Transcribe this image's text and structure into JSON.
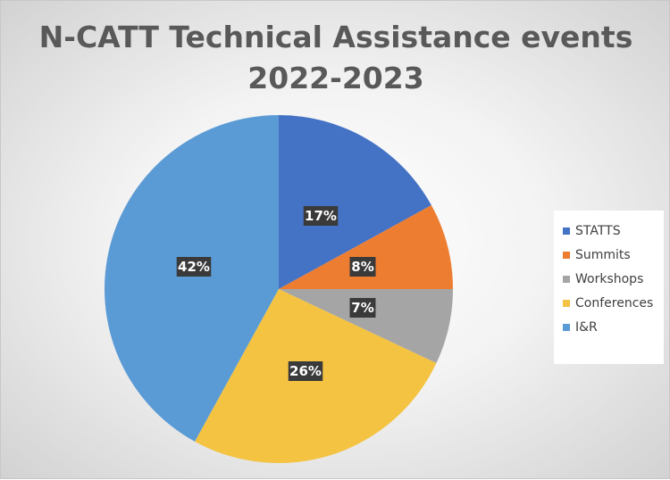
{
  "chart_data": {
    "type": "pie",
    "title_lines": [
      "N-CATT Technical Assistance events",
      "2022-2023"
    ],
    "categories": [
      "STATTS",
      "Summits",
      "Workshops",
      "Conferences",
      "I&R"
    ],
    "values": [
      17,
      8,
      7,
      26,
      42
    ],
    "data_labels": [
      "17%",
      "8%",
      "7%",
      "26%",
      "42%"
    ],
    "colors": [
      "#4472C4",
      "#ED7D31",
      "#A5A5A5",
      "#F4C342",
      "#5B9BD5"
    ],
    "start": "12 o'clock",
    "direction": "clockwise",
    "legend_position": "right"
  }
}
